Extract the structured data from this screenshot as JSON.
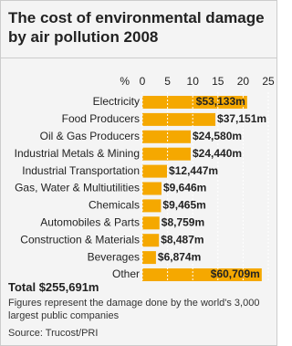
{
  "chart_data": {
    "type": "bar",
    "orientation": "horizontal",
    "title": "The cost of environmental damage by air pollution 2008",
    "x_label": "%",
    "categories": [
      "Electricity",
      "Food Producers",
      "Oil & Gas Producers",
      "Industrial Metals & Mining",
      "Industrial Transportation",
      "Gas, Water & Multiutilities",
      "Chemicals",
      "Automobiles & Parts",
      "Construction & Materials",
      "Beverages",
      "Other"
    ],
    "values": [
      20.8,
      14.5,
      9.6,
      9.6,
      4.9,
      3.8,
      3.7,
      3.4,
      3.3,
      2.7,
      23.7
    ],
    "amounts": [
      53133,
      37151,
      24580,
      24440,
      12447,
      9646,
      9465,
      8759,
      8487,
      6874,
      60709
    ],
    "amount_labels": [
      "$53,133m",
      "$37,151m",
      "$24,580m",
      "$24,440m",
      "$12,447m",
      "$9,646m",
      "$9,465m",
      "$8,759m",
      "$8,487m",
      "$6,874m",
      "$60,709m"
    ],
    "color": "#f5a800",
    "xlim": [
      0,
      25
    ],
    "xticks": [
      0,
      5,
      10,
      15,
      20,
      25
    ],
    "grid": true,
    "total": "Total $255,691m",
    "note": "Figures represent the damage done by the world's 3,000 largest public companies",
    "source": "Source: Trucost/PRI"
  }
}
